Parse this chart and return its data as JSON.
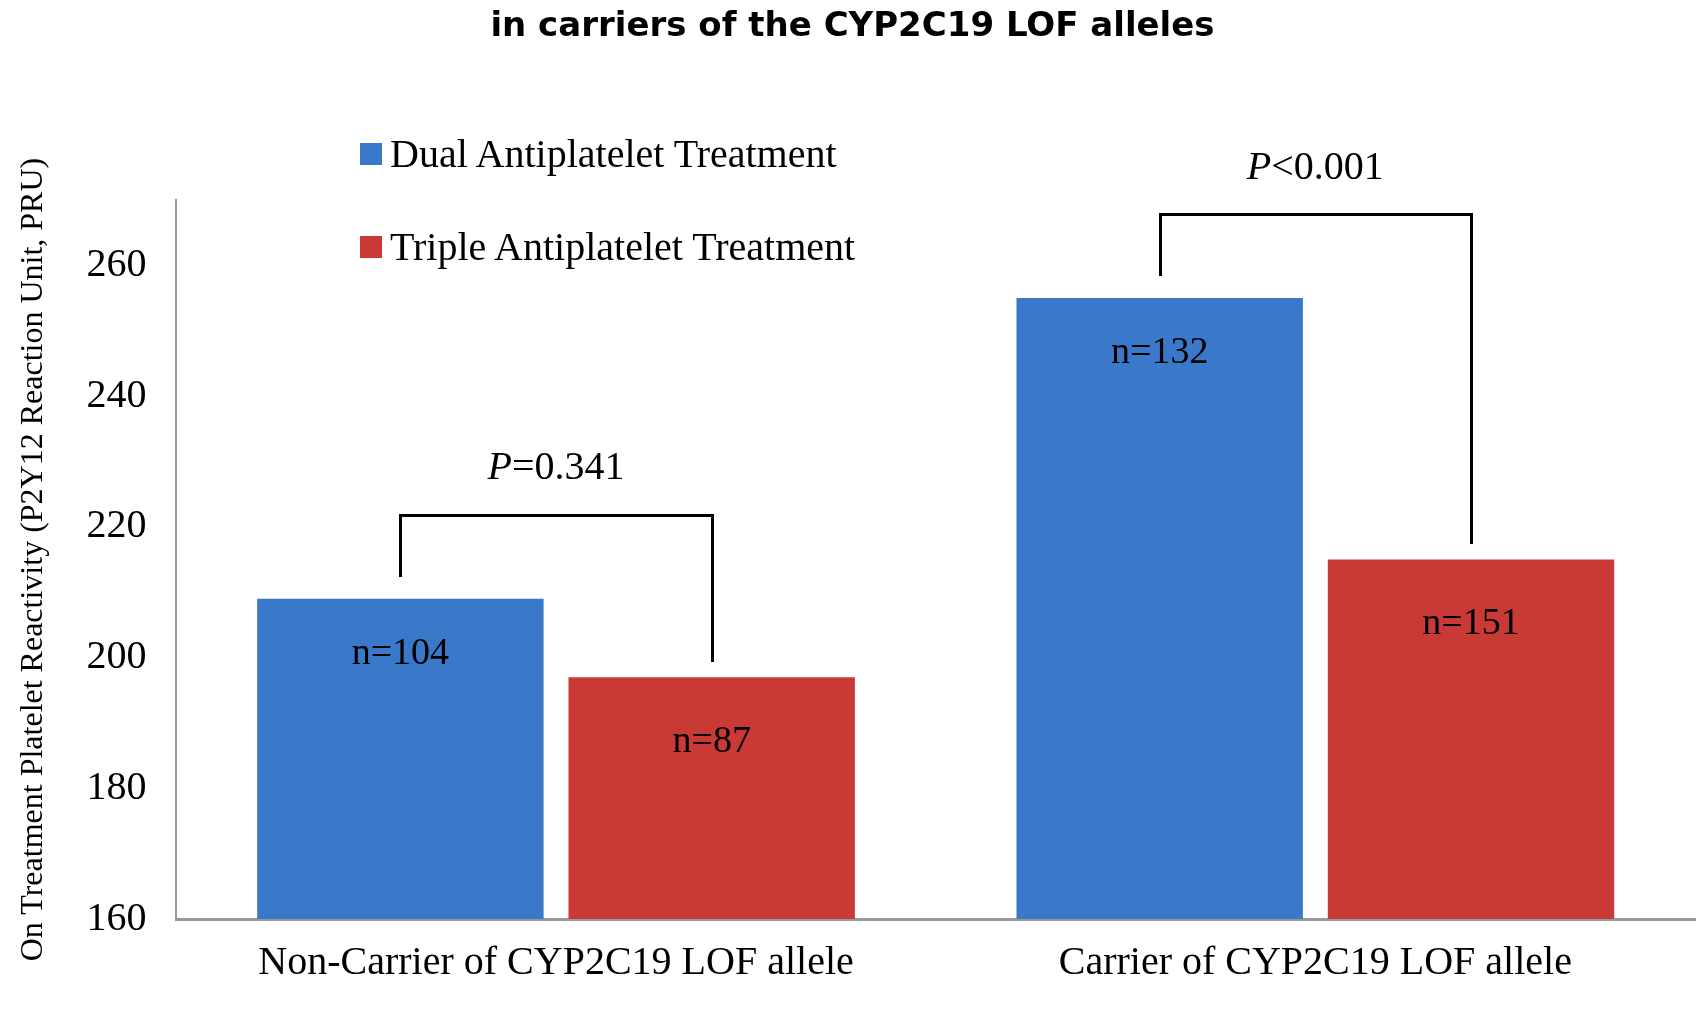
{
  "chart_data": {
    "type": "bar",
    "title": "in carriers of the CYP2C19 LOF alleles",
    "ylabel": "On Treatment Platelet Reactivity (P2Y12 Reaction Unit, PRU)",
    "categories": [
      "Non-Carrier of CYP2C19 LOF allele",
      "Carrier of CYP2C19 LOF allele"
    ],
    "series": [
      {
        "name": "Dual Antiplatelet Treatment",
        "color": "#3a78c9",
        "values": [
          209,
          255
        ]
      },
      {
        "name": "Triple Antiplatelet Treatment",
        "color": "#c93a37",
        "values": [
          197,
          215
        ]
      }
    ],
    "annotations": [
      "P=0.341",
      "P<0.001",
      "n=104",
      "n=132",
      "n=87",
      "n=151"
    ],
    "ylim": [
      160,
      270
    ],
    "yticks": [
      160,
      180,
      200,
      220,
      240,
      260
    ],
    "grid": false,
    "legend": "top left"
  }
}
